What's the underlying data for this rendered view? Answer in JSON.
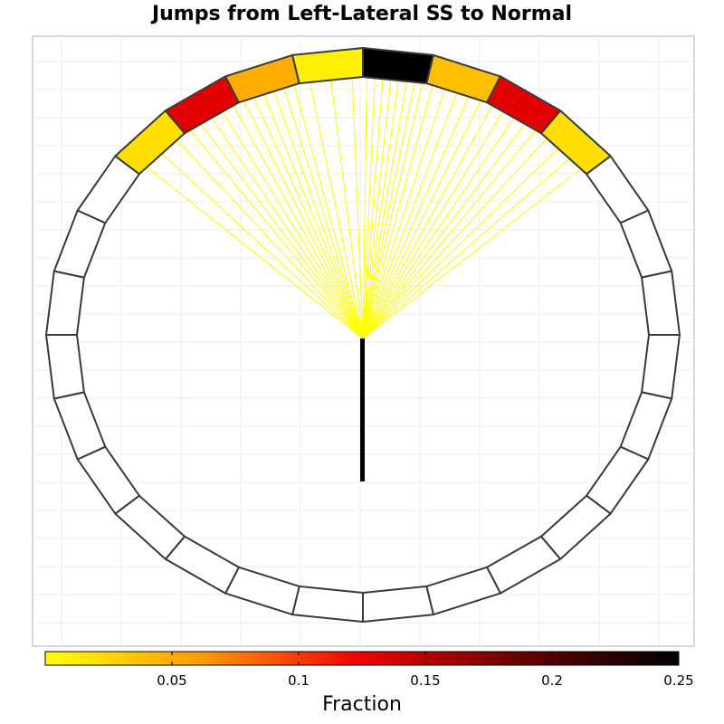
{
  "chart_data": {
    "type": "radial-heatmap",
    "title": "Jumps from Left-Lateral SS to Normal",
    "segment_count": 28,
    "segment_fractions": [
      0.25,
      0.04,
      0.13,
      0.02,
      0,
      0,
      0,
      0,
      0,
      0,
      0,
      0,
      0,
      0,
      0,
      0,
      0,
      0,
      0,
      0,
      0,
      0,
      0,
      0,
      0.02,
      0.13,
      0.05,
      0.01
    ],
    "jump_lines": {
      "color": "#ffff00",
      "spokes_per_segment": [
        8,
        5,
        5,
        4,
        0,
        0,
        0,
        0,
        0,
        0,
        0,
        0,
        0,
        0,
        0,
        0,
        0,
        0,
        0,
        0,
        0,
        0,
        0,
        0,
        3,
        5,
        6,
        3
      ]
    },
    "origin_bar_color": "#000000",
    "grid": true,
    "colorbar": {
      "title": "Fraction",
      "min": 0,
      "max": 0.25,
      "ticks": [
        0.05,
        0.1,
        0.15,
        0.2,
        0.25
      ],
      "tick_labels": [
        "0.05",
        "0.1",
        "0.15",
        "0.2",
        "0.25"
      ],
      "stops": [
        "#ffff00",
        "#ff9900",
        "#ee0000",
        "#660000",
        "#000000"
      ]
    }
  }
}
